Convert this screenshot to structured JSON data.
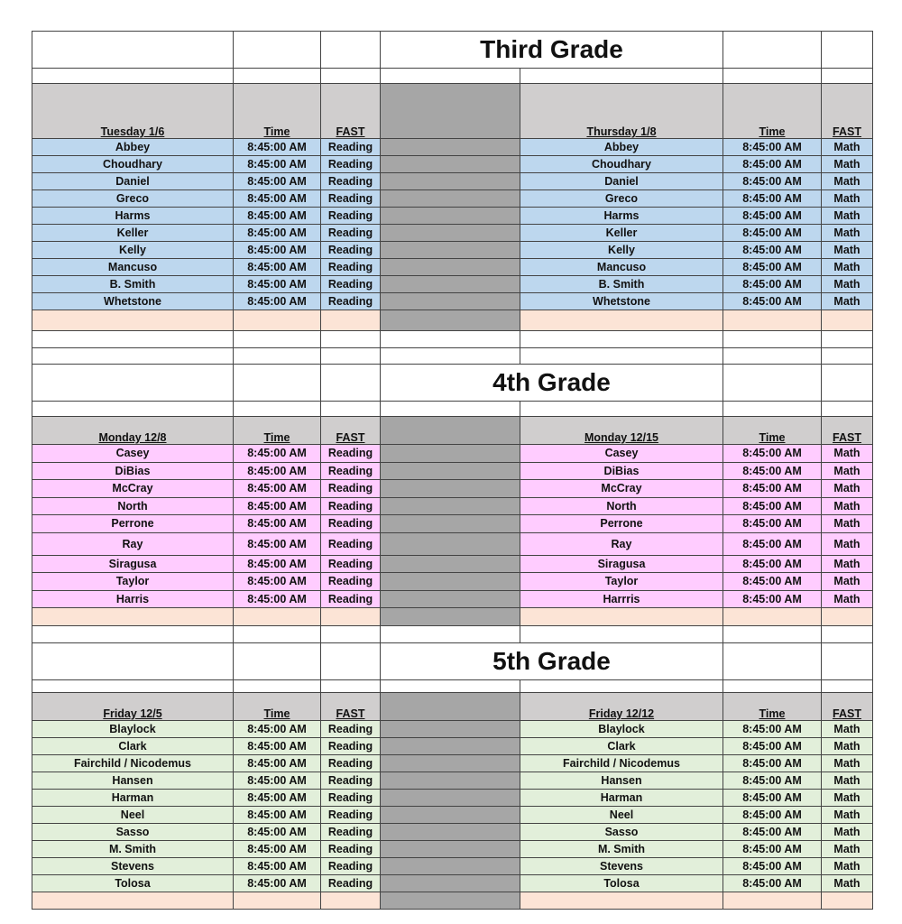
{
  "sections": [
    {
      "title": "Third Grade",
      "left": {
        "day": "Tuesday 1/6",
        "time": "Time",
        "fast": "FAST"
      },
      "right": {
        "day": "Thursday 1/8",
        "time": "Time",
        "fast": "FAST"
      },
      "left_subject": "Reading",
      "right_subject": "Math",
      "time": "8:45:00 AM",
      "color": "blue",
      "left_names": [
        "Abbey",
        "Choudhary",
        "Daniel",
        "Greco",
        "Harms",
        "Keller",
        "Kelly",
        "Mancuso",
        "B. Smith",
        "Whetstone"
      ],
      "right_names": [
        "Abbey",
        "Choudhary",
        "Daniel",
        "Greco",
        "Harms",
        "Keller",
        "Kelly",
        "Mancuso",
        "B. Smith",
        "Whetstone"
      ]
    },
    {
      "title": "4th Grade",
      "left": {
        "day": "Monday 12/8",
        "time": "Time",
        "fast": "FAST"
      },
      "right": {
        "day": "Monday 12/15",
        "time": "Time",
        "fast": "FAST"
      },
      "left_subject": "Reading",
      "right_subject": "Math",
      "time": "8:45:00 AM",
      "color": "pink",
      "left_names": [
        "Casey",
        "DiBias",
        "McCray",
        "North",
        "Perrone",
        "Ray",
        "Siragusa",
        "Taylor",
        "Harris"
      ],
      "right_names": [
        "Casey",
        "DiBias",
        "McCray",
        "North",
        "Perrone",
        "Ray",
        "Siragusa",
        "Taylor",
        "Harrris"
      ]
    },
    {
      "title": "5th Grade",
      "left": {
        "day": "Friday 12/5",
        "time": "Time",
        "fast": "FAST"
      },
      "right": {
        "day": "Friday 12/12",
        "time": "Time",
        "fast": "FAST"
      },
      "left_subject": "Reading",
      "right_subject": "Math",
      "time": "8:45:00 AM",
      "color": "green",
      "left_names": [
        "Blaylock",
        "Clark",
        "Fairchild / Nicodemus",
        "Hansen",
        "Harman",
        "Neel",
        "Sasso",
        "M. Smith",
        "Stevens",
        "Tolosa"
      ],
      "right_names": [
        "Blaylock",
        "Clark",
        "Fairchild / Nicodemus",
        "Hansen",
        "Harman",
        "Neel",
        "Sasso",
        "M. Smith",
        "Stevens",
        "Tolosa"
      ]
    }
  ]
}
